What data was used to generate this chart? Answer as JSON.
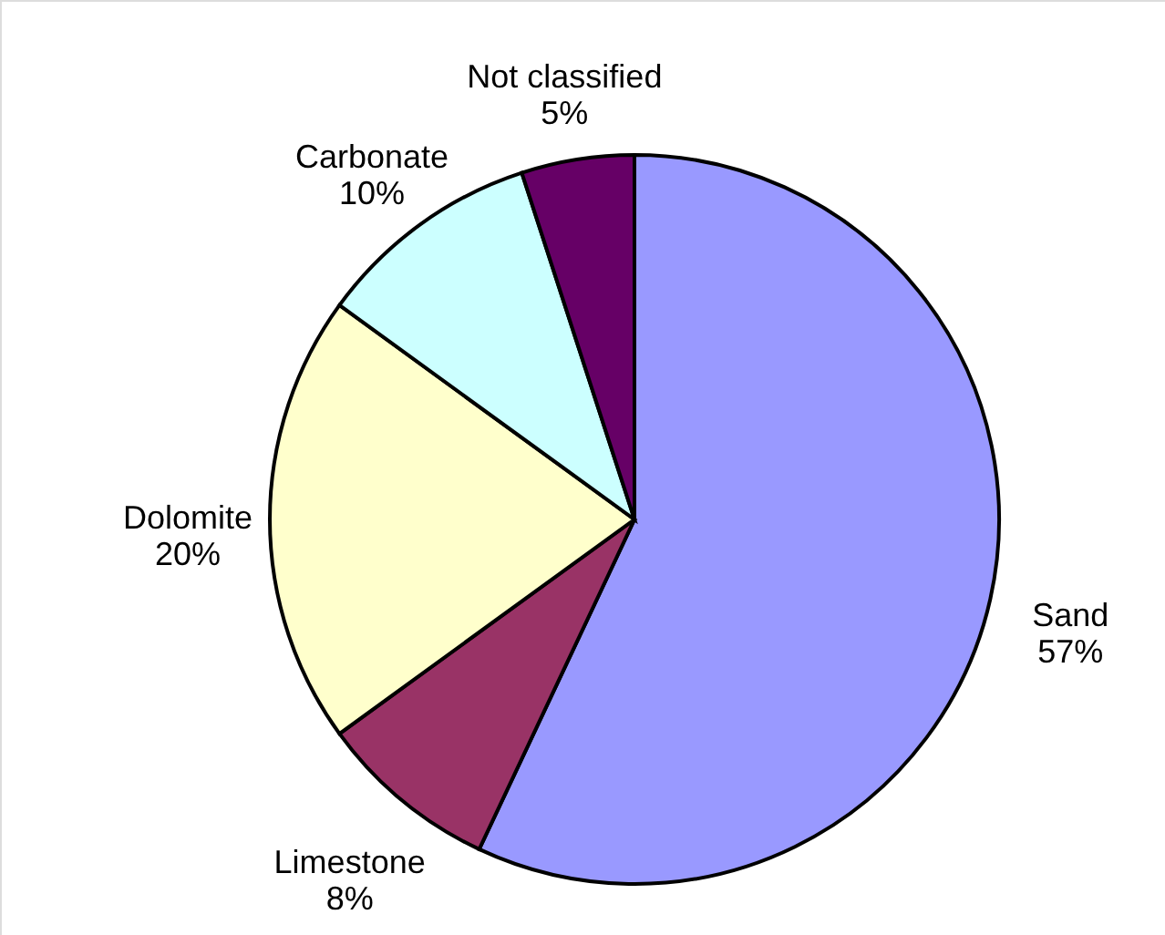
{
  "chart_data": {
    "type": "pie",
    "categories": [
      "Sand",
      "Limestone",
      "Dolomite",
      "Carbonate",
      "Not classified"
    ],
    "values": [
      57,
      8,
      20,
      10,
      5
    ],
    "value_labels": [
      "57%",
      "8%",
      "20%",
      "10%",
      "5%"
    ],
    "colors": [
      "#9999ff",
      "#993366",
      "#ffffcc",
      "#ccffff",
      "#660066"
    ]
  }
}
